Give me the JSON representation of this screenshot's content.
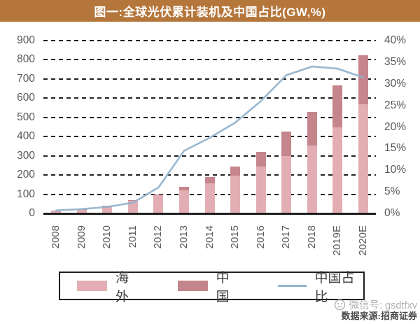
{
  "title": "图一:全球光伏累计装机及中国占比(GW,%)",
  "colors": {
    "title_bg": "#b5763b",
    "title_text": "#ffffff",
    "overseas_bar": "#e3aeb3",
    "china_bar": "#c5858c",
    "share_line": "#93b3cb",
    "gridline": "#1f1f1f",
    "axis_text": "#595959"
  },
  "legend": {
    "overseas_label": "海外",
    "china_label": "中国",
    "share_label": "中国占比"
  },
  "watermark": {
    "wechat_label": "微信号: gsdtfxv",
    "source_label": "数据来源:招商证券"
  },
  "chart_data": {
    "type": "bar",
    "subtype": "stacked-bars-with-line",
    "title": "图一:全球光伏累计装机及中国占比(GW,%)",
    "categories": [
      "2008",
      "2009",
      "2010",
      "2011",
      "2012",
      "2013",
      "2014",
      "2015",
      "2016",
      "2017",
      "2018",
      "2019E",
      "2020E"
    ],
    "series": [
      {
        "name": "海外",
        "type": "bar",
        "stack": "cumulative-gw",
        "axis": "left",
        "values": [
          15,
          22,
          39,
          67,
          93,
          121,
          158,
          195,
          243,
          297,
          355,
          448,
          570
        ]
      },
      {
        "name": "中国",
        "type": "bar",
        "stack": "cumulative-gw",
        "axis": "left",
        "values": [
          0.3,
          0.5,
          1,
          3,
          7,
          19,
          30,
          48,
          77,
          128,
          175,
          220,
          255
        ]
      },
      {
        "name": "中国占比",
        "type": "line",
        "axis": "right",
        "unit": "%",
        "values": [
          0.7,
          1,
          1.5,
          2.5,
          6,
          14.5,
          17.5,
          21,
          26,
          32,
          34,
          33.5,
          31.5
        ]
      }
    ],
    "left_axis": {
      "min": 0,
      "max": 900,
      "step": 100,
      "ticks": [
        "0",
        "100",
        "200",
        "300",
        "400",
        "500",
        "600",
        "700",
        "800",
        "900"
      ]
    },
    "right_axis": {
      "min": 0,
      "max": 40,
      "step": 5,
      "ticks": [
        "0%",
        "5%",
        "10%",
        "15%",
        "20%",
        "25%",
        "30%",
        "35%",
        "40%"
      ]
    },
    "grid": "dashed-horizontal",
    "legend_position": "bottom-center-boxed"
  }
}
